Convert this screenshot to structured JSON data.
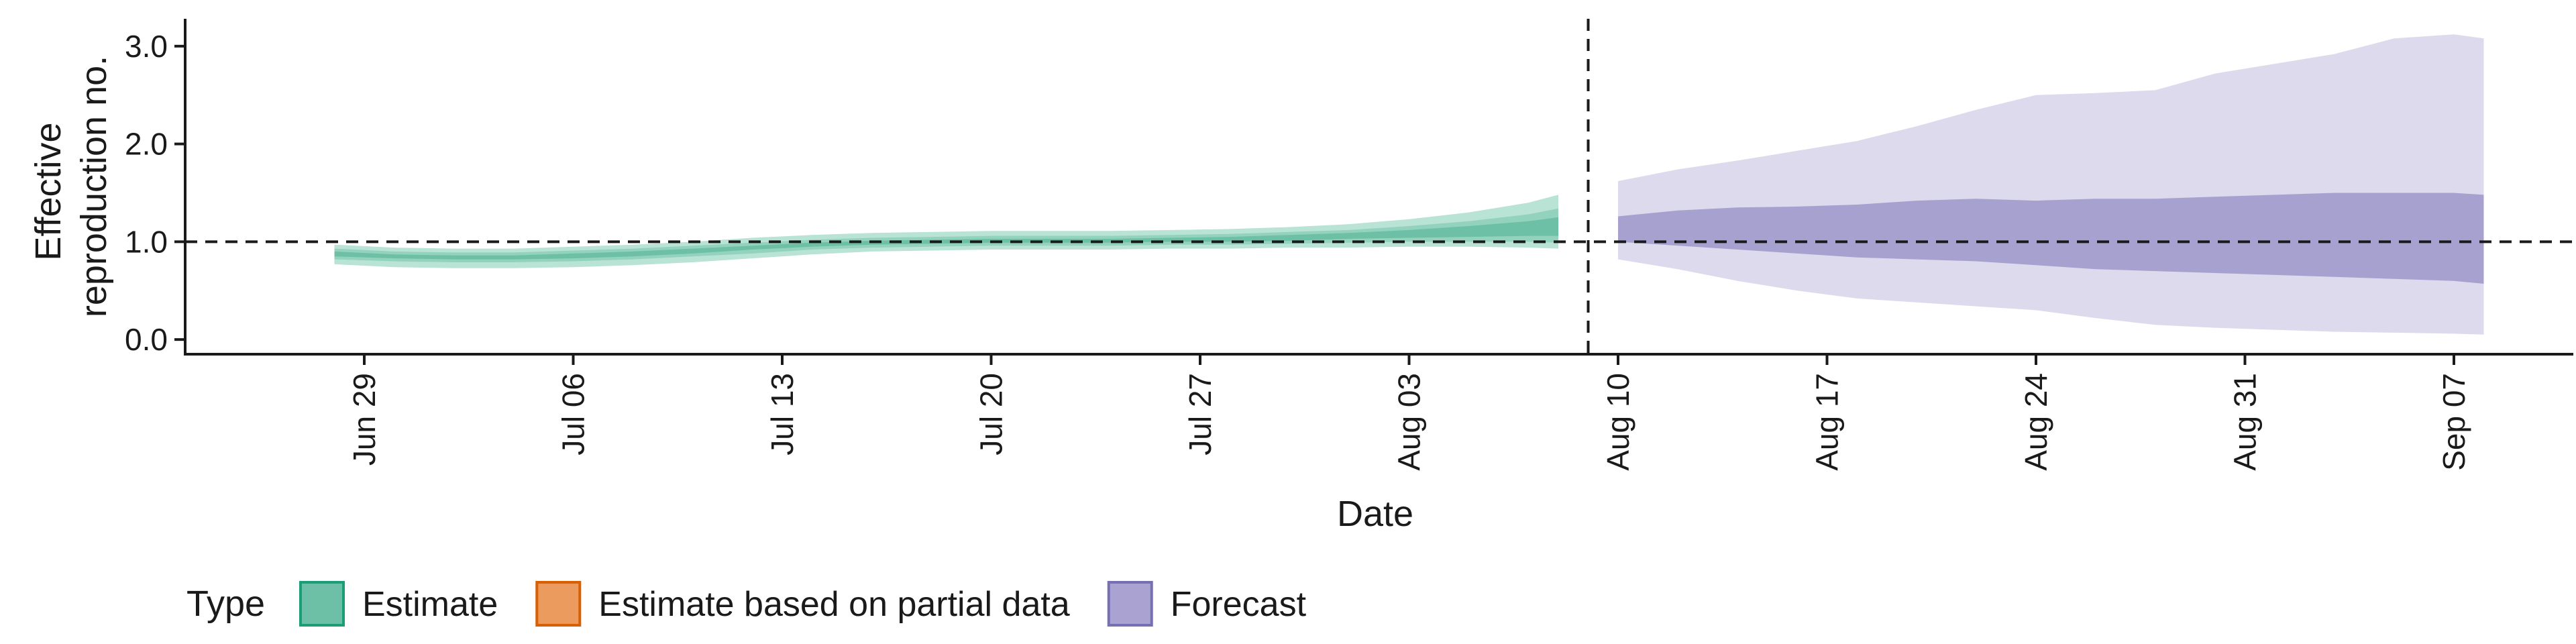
{
  "chart_data": {
    "type": "area",
    "title": "",
    "xlabel": "Date",
    "ylabel_lines": [
      "Effective",
      "reproduction no."
    ],
    "x_range": [
      "2020-06-23",
      "2020-09-11"
    ],
    "ylim": [
      -0.15,
      3.28
    ],
    "y_ticks": [
      0.0,
      1.0,
      2.0,
      3.0
    ],
    "y_tick_labels": [
      "0.0",
      "1.0",
      "2.0",
      "3.0"
    ],
    "x_ticks": [
      "2020-06-29",
      "2020-07-06",
      "2020-07-13",
      "2020-07-20",
      "2020-07-27",
      "2020-08-03",
      "2020-08-10",
      "2020-08-17",
      "2020-08-24",
      "2020-08-31",
      "2020-09-07"
    ],
    "x_tick_labels": [
      "Jun 29",
      "Jul 06",
      "Jul 13",
      "Jul 20",
      "Jul 27",
      "Aug 03",
      "Aug 10",
      "Aug 17",
      "Aug 24",
      "Aug 31",
      "Sep 07"
    ],
    "reference_lines": {
      "horizontal_y": 1.0,
      "vertical_x": "2020-08-09"
    },
    "grid": false,
    "legend": {
      "title": "Type",
      "position": "bottom-left",
      "entries": [
        {
          "label": "Estimate",
          "fill": "#6dc0a5",
          "stroke": "#1b9e77"
        },
        {
          "label": "Estimate based on partial data",
          "fill": "#ec9b5e",
          "stroke": "#d95f02"
        },
        {
          "label": "Forecast",
          "fill": "#aaa3d1",
          "stroke": "#7570b3"
        }
      ]
    },
    "series": [
      {
        "name": "Estimate",
        "colors": {
          "outer": "#b9e3d5",
          "mid": "#93d2bd",
          "inner": "#6dc0a5"
        },
        "x": [
          "2020-06-28",
          "2020-06-30",
          "2020-07-02",
          "2020-07-04",
          "2020-07-06",
          "2020-07-08",
          "2020-07-10",
          "2020-07-12",
          "2020-07-14",
          "2020-07-16",
          "2020-07-18",
          "2020-07-20",
          "2020-07-22",
          "2020-07-24",
          "2020-07-26",
          "2020-07-28",
          "2020-07-30",
          "2020-08-01",
          "2020-08-03",
          "2020-08-05",
          "2020-08-07",
          "2020-08-08"
        ],
        "outer_lower": [
          0.77,
          0.74,
          0.73,
          0.73,
          0.74,
          0.76,
          0.79,
          0.83,
          0.87,
          0.9,
          0.91,
          0.92,
          0.92,
          0.92,
          0.93,
          0.93,
          0.94,
          0.94,
          0.95,
          0.95,
          0.94,
          0.93
        ],
        "outer_upper": [
          0.97,
          0.94,
          0.93,
          0.93,
          0.95,
          0.97,
          1.0,
          1.04,
          1.07,
          1.09,
          1.1,
          1.11,
          1.11,
          1.11,
          1.12,
          1.13,
          1.15,
          1.18,
          1.23,
          1.3,
          1.4,
          1.48
        ],
        "mid_lower": [
          0.82,
          0.8,
          0.79,
          0.79,
          0.8,
          0.82,
          0.85,
          0.88,
          0.92,
          0.94,
          0.95,
          0.96,
          0.96,
          0.96,
          0.97,
          0.97,
          0.98,
          0.99,
          1.0,
          1.0,
          1.0,
          0.99
        ],
        "mid_upper": [
          0.93,
          0.9,
          0.89,
          0.89,
          0.91,
          0.93,
          0.96,
          0.99,
          1.02,
          1.04,
          1.05,
          1.06,
          1.06,
          1.06,
          1.07,
          1.08,
          1.1,
          1.12,
          1.16,
          1.21,
          1.28,
          1.34
        ],
        "inner_lower": [
          0.85,
          0.83,
          0.82,
          0.82,
          0.83,
          0.85,
          0.88,
          0.92,
          0.95,
          0.97,
          0.98,
          0.99,
          0.99,
          0.99,
          1.0,
          1.0,
          1.01,
          1.03,
          1.04,
          1.05,
          1.06,
          1.06
        ],
        "inner_upper": [
          0.9,
          0.87,
          0.86,
          0.86,
          0.88,
          0.9,
          0.93,
          0.96,
          0.99,
          1.01,
          1.02,
          1.03,
          1.03,
          1.03,
          1.04,
          1.05,
          1.07,
          1.09,
          1.12,
          1.16,
          1.21,
          1.25
        ]
      },
      {
        "name": "Forecast",
        "colors": {
          "outer": "#dcdaec",
          "inner": "#a7a1d0"
        },
        "x": [
          "2020-08-10",
          "2020-08-12",
          "2020-08-14",
          "2020-08-16",
          "2020-08-18",
          "2020-08-20",
          "2020-08-22",
          "2020-08-24",
          "2020-08-26",
          "2020-08-28",
          "2020-08-30",
          "2020-09-01",
          "2020-09-03",
          "2020-09-05",
          "2020-09-07",
          "2020-09-08"
        ],
        "outer_lower": [
          0.82,
          0.72,
          0.6,
          0.5,
          0.42,
          0.38,
          0.34,
          0.3,
          0.22,
          0.15,
          0.12,
          0.1,
          0.08,
          0.07,
          0.06,
          0.05
        ],
        "outer_upper": [
          1.62,
          1.74,
          1.83,
          1.93,
          2.03,
          2.18,
          2.35,
          2.5,
          2.52,
          2.55,
          2.72,
          2.82,
          2.92,
          3.08,
          3.12,
          3.08
        ],
        "inner_lower": [
          1.0,
          0.96,
          0.92,
          0.88,
          0.84,
          0.82,
          0.8,
          0.76,
          0.72,
          0.7,
          0.68,
          0.66,
          0.64,
          0.62,
          0.6,
          0.57
        ],
        "inner_upper": [
          1.26,
          1.32,
          1.35,
          1.36,
          1.38,
          1.42,
          1.44,
          1.42,
          1.44,
          1.44,
          1.46,
          1.48,
          1.5,
          1.5,
          1.5,
          1.48
        ]
      }
    ]
  }
}
